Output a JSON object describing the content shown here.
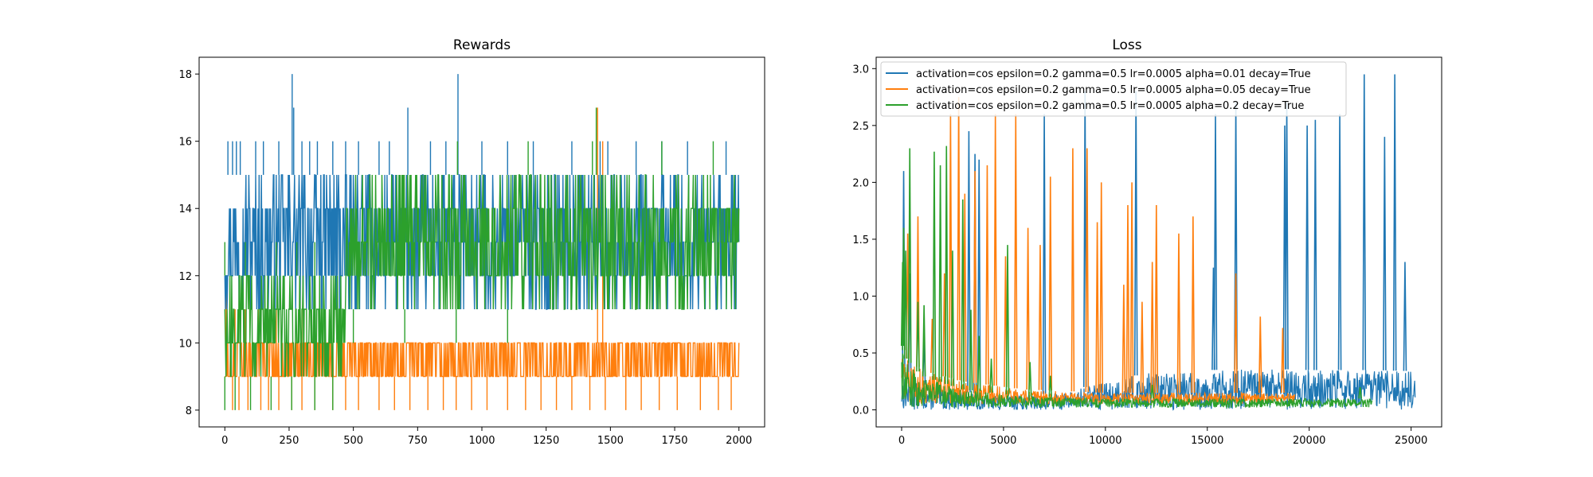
{
  "chart_data": [
    {
      "type": "line",
      "title": "Rewards",
      "xlabel": "",
      "ylabel": "",
      "xlim": [
        -100,
        2100
      ],
      "ylim": [
        7.5,
        18.5
      ],
      "x_ticks": [
        0,
        250,
        500,
        750,
        1000,
        1250,
        1500,
        1750,
        2000
      ],
      "x_tick_labels": [
        "0",
        "250",
        "500",
        "750",
        "1000",
        "1250",
        "1500",
        "1750",
        "2000"
      ],
      "y_ticks": [
        8,
        10,
        12,
        14,
        16,
        18
      ],
      "y_tick_labels": [
        "8",
        "10",
        "12",
        "14",
        "16",
        "18"
      ],
      "grid": false,
      "series_envelopes": [
        {
          "color": "#1f77b4",
          "x_end": 2000,
          "segments": [
            {
              "x": [
                0,
                450
              ],
              "low": 11,
              "high": 15
            },
            {
              "x": [
                450,
                2000
              ],
              "low": 11,
              "high": 15
            }
          ],
          "spikes": [
            [
              12,
              16
            ],
            [
              30,
              16
            ],
            [
              45,
              16
            ],
            [
              60,
              16
            ],
            [
              120,
              16
            ],
            [
              150,
              16
            ],
            [
              210,
              16
            ],
            [
              262,
              18
            ],
            [
              268,
              17
            ],
            [
              300,
              16
            ],
            [
              330,
              16
            ],
            [
              360,
              16
            ],
            [
              420,
              16
            ],
            [
              470,
              16
            ],
            [
              520,
              16
            ],
            [
              600,
              16
            ],
            [
              640,
              16
            ],
            [
              712,
              17
            ],
            [
              800,
              16
            ],
            [
              860,
              16
            ],
            [
              907,
              18
            ],
            [
              1000,
              16
            ],
            [
              1100,
              16
            ],
            [
              1200,
              16
            ],
            [
              1350,
              16
            ],
            [
              1460,
              16
            ],
            [
              1490,
              16
            ],
            [
              1600,
              16
            ],
            [
              1700,
              16
            ],
            [
              1800,
              16
            ],
            [
              1950,
              16
            ]
          ]
        },
        {
          "color": "#ff7f0e",
          "x_end": 2000,
          "segments": [
            {
              "x": [
                0,
                2000
              ],
              "low": 9,
              "high": 10
            }
          ],
          "dips": [
            [
              30,
              8
            ],
            [
              55,
              8
            ],
            [
              90,
              8
            ],
            [
              140,
              8
            ],
            [
              170,
              8
            ],
            [
              210,
              8
            ],
            [
              260,
              8
            ],
            [
              300,
              8
            ],
            [
              350,
              8
            ],
            [
              420,
              8
            ],
            [
              470,
              8
            ],
            [
              520,
              8
            ],
            [
              600,
              8
            ],
            [
              660,
              8
            ],
            [
              720,
              8
            ],
            [
              790,
              8
            ],
            [
              850,
              8
            ],
            [
              900,
              8
            ],
            [
              960,
              8
            ],
            [
              1020,
              8
            ],
            [
              1100,
              8
            ],
            [
              1170,
              8
            ],
            [
              1230,
              8
            ],
            [
              1290,
              8
            ],
            [
              1350,
              8
            ],
            [
              1420,
              8
            ],
            [
              1480,
              8
            ],
            [
              1560,
              8
            ],
            [
              1620,
              8
            ],
            [
              1690,
              8
            ],
            [
              1760,
              8
            ],
            [
              1850,
              8
            ],
            [
              1920,
              8
            ],
            [
              1970,
              8
            ]
          ],
          "spikes": [
            [
              5,
              12
            ],
            [
              40,
              11
            ],
            [
              80,
              11
            ],
            [
              130,
              11
            ],
            [
              200,
              11
            ],
            [
              300,
              11
            ],
            [
              1450,
              17
            ],
            [
              1470,
              16
            ]
          ]
        },
        {
          "color": "#2ca02c",
          "x_end": 2000,
          "segments": [
            {
              "x": [
                0,
                470
              ],
              "low": 9,
              "high": 12
            },
            {
              "x": [
                470,
                2000
              ],
              "low": 11,
              "high": 15
            }
          ],
          "dips": [
            [
              0,
              8
            ],
            [
              40,
              8
            ],
            [
              100,
              8
            ],
            [
              180,
              8
            ],
            [
              260,
              8
            ],
            [
              350,
              8
            ],
            [
              420,
              8
            ],
            [
              500,
              10
            ],
            [
              700,
              10
            ],
            [
              900,
              10
            ],
            [
              1100,
              10
            ]
          ],
          "spikes": [
            [
              0,
              13
            ],
            [
              80,
              13
            ],
            [
              200,
              13
            ],
            [
              280,
              13
            ],
            [
              350,
              13
            ],
            [
              905,
              16
            ],
            [
              1180,
              16
            ],
            [
              1430,
              16
            ],
            [
              1445,
              17
            ],
            [
              1700,
              16
            ],
            [
              1900,
              16
            ]
          ]
        }
      ]
    },
    {
      "type": "line",
      "title": "Loss",
      "xlabel": "",
      "ylabel": "",
      "xlim": [
        -1250,
        26500
      ],
      "ylim": [
        -0.15,
        3.1
      ],
      "x_ticks": [
        0,
        5000,
        10000,
        15000,
        20000,
        25000
      ],
      "x_tick_labels": [
        "0",
        "5000",
        "10000",
        "15000",
        "20000",
        "25000"
      ],
      "y_ticks": [
        0.0,
        0.5,
        1.0,
        1.5,
        2.0,
        2.5,
        3.0
      ],
      "y_tick_labels": [
        "0.0",
        "0.5",
        "1.0",
        "1.5",
        "2.0",
        "2.5",
        "3.0"
      ],
      "grid": false,
      "legend": {
        "placement": "top-left",
        "entries": [
          {
            "label": "activation=cos epsilon=0.2 gamma=0.5 lr=0.0005 alpha=0.01 decay=True",
            "color": "#1f77b4"
          },
          {
            "label": "activation=cos epsilon=0.2 gamma=0.5 lr=0.0005 alpha=0.05 decay=True",
            "color": "#ff7f0e"
          },
          {
            "label": "activation=cos epsilon=0.2 gamma=0.5 lr=0.0005 alpha=0.2 decay=True",
            "color": "#2ca02c"
          }
        ]
      },
      "series": [
        {
          "color": "#1f77b4",
          "x_end": 25200,
          "baseline": [
            [
              0,
              0.3
            ],
            [
              500,
              0.25
            ],
            [
              2000,
              0.18
            ],
            [
              5000,
              0.12
            ],
            [
              8000,
              0.15
            ],
            [
              10000,
              0.25
            ],
            [
              12000,
              0.32
            ],
            [
              15000,
              0.35
            ],
            [
              18000,
              0.36
            ],
            [
              20000,
              0.35
            ],
            [
              22000,
              0.35
            ],
            [
              23000,
              0.35
            ],
            [
              25200,
              0.34
            ]
          ],
          "floor": [
            [
              0,
              0.0
            ],
            [
              25200,
              0.0
            ]
          ],
          "spikes": [
            [
              100,
              2.1
            ],
            [
              400,
              1.2
            ],
            [
              1100,
              0.65
            ],
            [
              3300,
              2.45
            ],
            [
              3600,
              2.25
            ],
            [
              3800,
              2.2
            ],
            [
              7000,
              2.6
            ],
            [
              9000,
              2.8
            ],
            [
              11500,
              2.8
            ],
            [
              15300,
              1.25
            ],
            [
              15400,
              2.6
            ],
            [
              16400,
              2.7
            ],
            [
              18800,
              2.5
            ],
            [
              18900,
              2.7
            ],
            [
              19900,
              2.5
            ],
            [
              20300,
              2.55
            ],
            [
              21500,
              2.6
            ],
            [
              22700,
              2.95
            ],
            [
              23700,
              2.4
            ],
            [
              24200,
              2.95
            ],
            [
              24700,
              1.3
            ]
          ]
        },
        {
          "color": "#ff7f0e",
          "x_end": 19300,
          "baseline": [
            [
              0,
              0.55
            ],
            [
              300,
              0.45
            ],
            [
              1000,
              0.35
            ],
            [
              3000,
              0.25
            ],
            [
              6000,
              0.18
            ],
            [
              10000,
              0.15
            ],
            [
              14000,
              0.15
            ],
            [
              19300,
              0.15
            ]
          ],
          "floor": [
            [
              0,
              0.05
            ],
            [
              19300,
              0.05
            ]
          ],
          "spikes": [
            [
              300,
              1.55
            ],
            [
              800,
              1.7
            ],
            [
              1500,
              0.8
            ],
            [
              2100,
              1.2
            ],
            [
              2400,
              2.6
            ],
            [
              2800,
              2.75
            ],
            [
              3100,
              1.9
            ],
            [
              3600,
              2.1
            ],
            [
              4200,
              2.15
            ],
            [
              4600,
              2.6
            ],
            [
              5100,
              1.35
            ],
            [
              5600,
              2.6
            ],
            [
              6200,
              1.6
            ],
            [
              6800,
              1.45
            ],
            [
              7300,
              2.05
            ],
            [
              8400,
              2.3
            ],
            [
              9100,
              2.3
            ],
            [
              9600,
              1.65
            ],
            [
              9800,
              2.0
            ],
            [
              10900,
              1.1
            ],
            [
              11100,
              1.8
            ],
            [
              11300,
              2.0
            ],
            [
              11800,
              0.95
            ],
            [
              12300,
              1.3
            ],
            [
              12500,
              1.8
            ],
            [
              13600,
              1.55
            ],
            [
              14300,
              1.7
            ],
            [
              16400,
              1.2
            ],
            [
              17600,
              0.82
            ],
            [
              18700,
              0.72
            ]
          ]
        },
        {
          "color": "#2ca02c",
          "x_end": 23100,
          "baseline": [
            [
              0,
              0.6
            ],
            [
              200,
              0.45
            ],
            [
              1000,
              0.3
            ],
            [
              3000,
              0.18
            ],
            [
              6000,
              0.12
            ],
            [
              10000,
              0.1
            ],
            [
              15000,
              0.1
            ],
            [
              23100,
              0.1
            ]
          ],
          "floor": [
            [
              0,
              0.02
            ],
            [
              23100,
              0.02
            ]
          ],
          "spikes": [
            [
              50,
              1.3
            ],
            [
              100,
              1.6
            ],
            [
              200,
              1.4
            ],
            [
              400,
              2.3
            ],
            [
              800,
              0.95
            ],
            [
              1100,
              0.92
            ],
            [
              1600,
              2.27
            ],
            [
              1900,
              2.15
            ],
            [
              2200,
              2.32
            ],
            [
              2500,
              1.4
            ],
            [
              3000,
              1.85
            ],
            [
              3400,
              0.88
            ],
            [
              3800,
              0.65
            ],
            [
              4400,
              0.45
            ],
            [
              5200,
              1.45
            ],
            [
              6300,
              0.42
            ],
            [
              7300,
              0.3
            ],
            [
              12300,
              0.22
            ],
            [
              22500,
              0.2
            ]
          ]
        }
      ]
    }
  ]
}
